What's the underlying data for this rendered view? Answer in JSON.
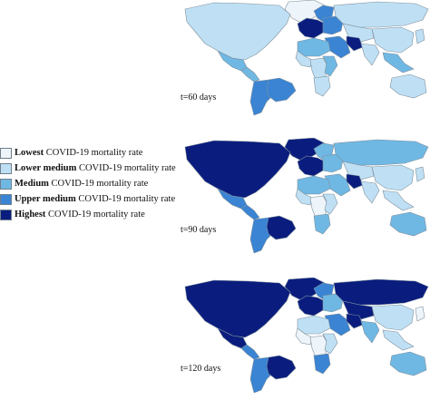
{
  "legend": [
    {
      "level": "Lowest",
      "suffix": "COVID-19 mortality rate",
      "color": "#eef5fa"
    },
    {
      "level": "Lower medium",
      "suffix": "COVID-19 mortality rate",
      "color": "#bfe0f4"
    },
    {
      "level": "Medium",
      "suffix": "COVID-19 mortality rate",
      "color": "#6fb8e4"
    },
    {
      "level": "Upper medium",
      "suffix": "COVID-19 mortality rate",
      "color": "#3a84d3"
    },
    {
      "level": "Highest",
      "suffix": "COVID-19 mortality rate",
      "color": "#0a1d7e"
    }
  ],
  "maps": [
    {
      "label": "t=60 days",
      "regions": {
        "north_america": 1,
        "greenland": 0,
        "mexico": 2,
        "central_america": 2,
        "south_america": 3,
        "brazil": 3,
        "western_europe": 4,
        "eastern_europe": 3,
        "scandinavia": 3,
        "russia": 1,
        "middle_east": 3,
        "iran": 4,
        "north_africa": 2,
        "west_africa": 1,
        "central_africa": 1,
        "east_africa": 2,
        "southern_africa": 1,
        "central_asia": 1,
        "india": 1,
        "china": 1,
        "southeast_asia": 2,
        "japan": 1,
        "australia": 1
      }
    },
    {
      "label": "t=90 days",
      "regions": {
        "north_america": 4,
        "greenland": 4,
        "mexico": 3,
        "central_america": 3,
        "south_america": 3,
        "brazil": 4,
        "western_europe": 4,
        "eastern_europe": 2,
        "scandinavia": 2,
        "russia": 2,
        "middle_east": 2,
        "iran": 4,
        "north_africa": 2,
        "west_africa": 1,
        "central_africa": 0,
        "east_africa": 1,
        "southern_africa": 2,
        "central_asia": 1,
        "india": 1,
        "china": 1,
        "southeast_asia": 1,
        "japan": 1,
        "australia": 2
      }
    },
    {
      "label": "t=120 days",
      "regions": {
        "north_america": 4,
        "greenland": 4,
        "mexico": 4,
        "central_america": 3,
        "south_america": 3,
        "brazil": 4,
        "western_europe": 4,
        "eastern_europe": 2,
        "scandinavia": 3,
        "russia": 4,
        "middle_east": 3,
        "iran": 4,
        "north_africa": 1,
        "west_africa": 0,
        "central_africa": 0,
        "east_africa": 1,
        "southern_africa": 3,
        "central_asia": 4,
        "india": 2,
        "china": 1,
        "southeast_asia": 1,
        "japan": 0,
        "australia": 2
      }
    }
  ]
}
